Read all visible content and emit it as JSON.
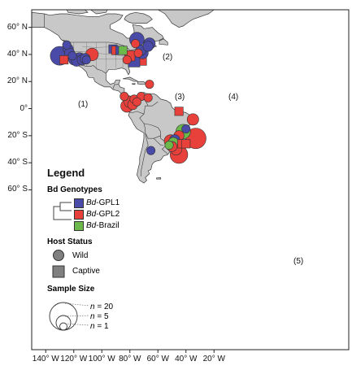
{
  "map": {
    "lat_labels": [
      "60° N",
      "40° N",
      "20° N",
      "0°",
      "20° S",
      "40° S",
      "60° S"
    ],
    "lon_labels": [
      "140° W",
      "120° W",
      "100° W",
      "80° W",
      "60° W",
      "40° W",
      "20° W"
    ],
    "land_color": "#c8c8c8",
    "water_color": "#ffffff",
    "outline_color": "#3a3a3a"
  },
  "legend": {
    "title": "Legend",
    "genotypes_title": "Bd Genotypes",
    "genotypes": [
      {
        "prefix": "Bd",
        "suffix": "-GPL1",
        "color": "#4a4aa8"
      },
      {
        "prefix": "Bd",
        "suffix": "-GPL2",
        "color": "#e8403a"
      },
      {
        "prefix": "Bd",
        "suffix": "-Brazil",
        "color": "#6cb84a"
      }
    ],
    "host_title": "Host Status",
    "host": [
      {
        "label": "Wild",
        "shape": "circle"
      },
      {
        "label": "Captive",
        "shape": "square"
      }
    ],
    "size_title": "Sample Size",
    "sizes": [
      {
        "n_label": "n",
        "value_label": " = 20",
        "n": 20
      },
      {
        "n_label": "n",
        "value_label": " = 5",
        "n": 5
      },
      {
        "n_label": "n",
        "value_label": " = 1",
        "n": 1
      }
    ]
  },
  "annotations": [
    "(1)",
    "(2)",
    "(3)",
    "(4)",
    "(5)"
  ],
  "samples": [
    {
      "lon": -130,
      "lat": 39,
      "genotype": "GPL1",
      "host": "wild",
      "n": 12
    },
    {
      "lon": -127,
      "lat": 36,
      "genotype": "GPL2",
      "host": "captive",
      "n": 1
    },
    {
      "lon": -125,
      "lat": 47,
      "genotype": "GPL1",
      "host": "wild",
      "n": 1
    },
    {
      "lon": -124,
      "lat": 44,
      "genotype": "GPL1",
      "host": "wild",
      "n": 2
    },
    {
      "lon": -123,
      "lat": 41,
      "genotype": "GPL1",
      "host": "wild",
      "n": 2
    },
    {
      "lon": -121,
      "lat": 39,
      "genotype": "GPL1",
      "host": "wild",
      "n": 1
    },
    {
      "lon": -120,
      "lat": 36,
      "genotype": "GPL1",
      "host": "wild",
      "n": 2
    },
    {
      "lon": -118,
      "lat": 35,
      "genotype": "GPL1",
      "host": "wild",
      "n": 2
    },
    {
      "lon": -116,
      "lat": 37,
      "genotype": "GPL1",
      "host": "wild",
      "n": 3
    },
    {
      "lon": -114,
      "lat": 36,
      "genotype": "GPL1",
      "host": "wild",
      "n": 2
    },
    {
      "lon": -112,
      "lat": 37,
      "genotype": "GPL1",
      "host": "wild",
      "n": 2
    },
    {
      "lon": -111,
      "lat": 36,
      "genotype": "GPL1",
      "host": "wild",
      "n": 1
    },
    {
      "lon": -107,
      "lat": 40,
      "genotype": "GPL2",
      "host": "wild",
      "n": 4
    },
    {
      "lon": -92,
      "lat": 44,
      "genotype": "GPL1",
      "host": "captive",
      "n": 1
    },
    {
      "lon": -90,
      "lat": 43,
      "genotype": "GPL2",
      "host": "captive",
      "n": 1
    },
    {
      "lon": -87,
      "lat": 43,
      "genotype": "GPL1",
      "host": "captive",
      "n": 1
    },
    {
      "lon": -85,
      "lat": 43,
      "genotype": "Brazil",
      "host": "captive",
      "n": 1
    },
    {
      "lon": -80,
      "lat": 39,
      "genotype": "GPL2",
      "host": "captive",
      "n": 2
    },
    {
      "lon": -82,
      "lat": 36,
      "genotype": "GPL2",
      "host": "wild",
      "n": 1
    },
    {
      "lon": -77,
      "lat": 35,
      "genotype": "GPL1",
      "host": "captive",
      "n": 3
    },
    {
      "lon": -75,
      "lat": 51,
      "genotype": "GPL1",
      "host": "wild",
      "n": 6
    },
    {
      "lon": -72,
      "lat": 43,
      "genotype": "GPL1",
      "host": "wild",
      "n": 2
    },
    {
      "lon": -74,
      "lat": 41,
      "genotype": "GPL2",
      "host": "wild",
      "n": 1
    },
    {
      "lon": -73,
      "lat": 37,
      "genotype": "GPL2",
      "host": "captive",
      "n": 5
    },
    {
      "lon": -71,
      "lat": 41,
      "genotype": "GPL1",
      "host": "wild",
      "n": 3
    },
    {
      "lon": -67,
      "lat": 46,
      "genotype": "GPL1",
      "host": "wild",
      "n": 2
    },
    {
      "lon": -66,
      "lat": 48,
      "genotype": "GPL1",
      "host": "wild",
      "n": 3
    },
    {
      "lon": -76,
      "lat": 48,
      "genotype": "GPL2",
      "host": "wild",
      "n": 1
    },
    {
      "lon": -66,
      "lat": 18,
      "genotype": "GPL2",
      "host": "wild",
      "n": 1
    },
    {
      "lon": -84,
      "lat": 9,
      "genotype": "GPL2",
      "host": "wild",
      "n": 1
    },
    {
      "lon": -80,
      "lat": 5,
      "genotype": "GPL2",
      "host": "wild",
      "n": 3
    },
    {
      "lon": -77,
      "lat": 7,
      "genotype": "GPL2",
      "host": "wild",
      "n": 1
    },
    {
      "lon": -72,
      "lat": 9,
      "genotype": "GPL2",
      "host": "wild",
      "n": 1
    },
    {
      "lon": -67,
      "lat": 8,
      "genotype": "GPL2",
      "host": "wild",
      "n": 1
    },
    {
      "lon": -82,
      "lat": 2,
      "genotype": "GPL2",
      "host": "wild",
      "n": 4
    },
    {
      "lon": -78,
      "lat": 3,
      "genotype": "GPL2",
      "host": "wild",
      "n": 2
    },
    {
      "lon": -75,
      "lat": 5,
      "genotype": "GPL2",
      "host": "wild",
      "n": 1
    },
    {
      "lon": -45,
      "lat": -2,
      "genotype": "GPL2",
      "host": "captive",
      "n": 1
    },
    {
      "lon": -35,
      "lat": -8,
      "genotype": "GPL2",
      "host": "wild",
      "n": 3
    },
    {
      "lon": -42,
      "lat": -17,
      "genotype": "Brazil",
      "host": "wild",
      "n": 6
    },
    {
      "lon": -40,
      "lat": -15,
      "genotype": "GPL1",
      "host": "wild",
      "n": 1
    },
    {
      "lon": -45,
      "lat": -20,
      "genotype": "GPL2",
      "host": "wild",
      "n": 2
    },
    {
      "lon": -33,
      "lat": -22,
      "genotype": "GPL2",
      "host": "wild",
      "n": 15
    },
    {
      "lon": -51,
      "lat": -24,
      "genotype": "GPL2",
      "host": "wild",
      "n": 4
    },
    {
      "lon": -48,
      "lat": -23,
      "genotype": "GPL1",
      "host": "wild",
      "n": 2
    },
    {
      "lon": -49,
      "lat": -25,
      "genotype": "Brazil",
      "host": "wild",
      "n": 2
    },
    {
      "lon": -52,
      "lat": -27,
      "genotype": "Brazil",
      "host": "wild",
      "n": 1
    },
    {
      "lon": -50,
      "lat": -28,
      "genotype": "GPL2",
      "host": "wild",
      "n": 2
    },
    {
      "lon": -47,
      "lat": -30,
      "genotype": "GPL2",
      "host": "wild",
      "n": 3
    },
    {
      "lon": -43,
      "lat": -26,
      "genotype": "GPL2",
      "host": "captive",
      "n": 1
    },
    {
      "lon": -40,
      "lat": -26,
      "genotype": "GPL2",
      "host": "captive",
      "n": 1
    },
    {
      "lon": -45,
      "lat": -34,
      "genotype": "GPL2",
      "host": "wild",
      "n": 10
    },
    {
      "lon": -65,
      "lat": -31,
      "genotype": "GPL1",
      "host": "wild",
      "n": 1
    }
  ]
}
